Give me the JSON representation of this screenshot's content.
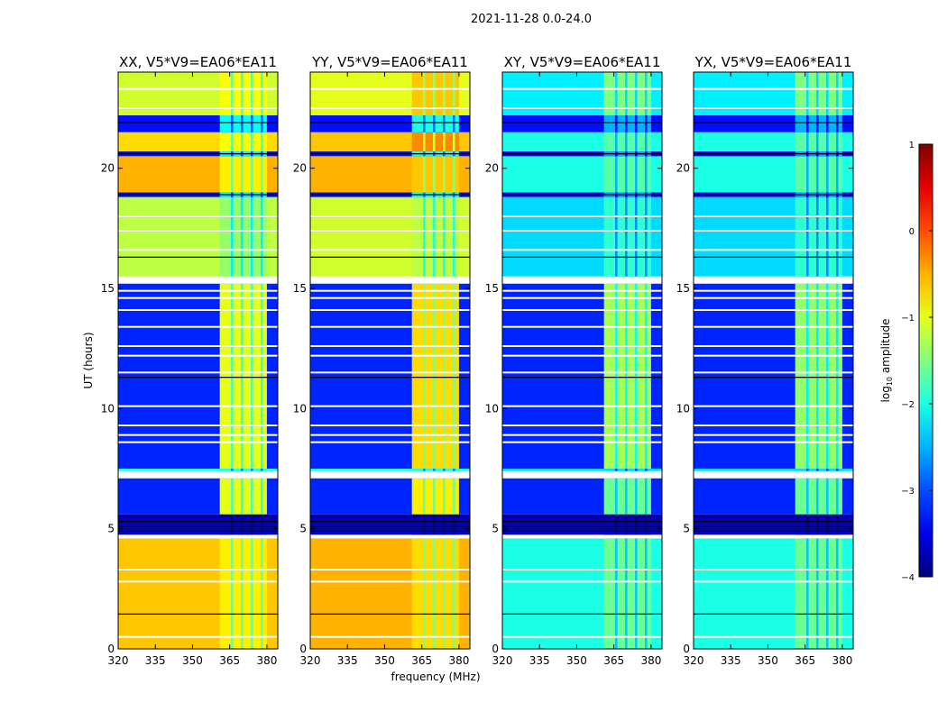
{
  "chart_data": {
    "type": "heatmap",
    "suptitle": "2021-11-28 0.0-24.0",
    "xlabel": "frequency (MHz)",
    "ylabel": "UT (hours)",
    "xlim": [
      320,
      384.4
    ],
    "ylim": [
      0,
      24
    ],
    "xticks": [
      320,
      335,
      350,
      365,
      380
    ],
    "yticks": [
      0,
      5,
      10,
      15,
      20
    ],
    "high_band_mhz": [
      361,
      380
    ],
    "stripe_freqs_mhz": [
      365.5,
      369.5,
      373.5,
      377.5
    ],
    "white_line_ut": [
      0.5,
      2.8,
      3.3,
      8.6,
      8.9,
      9.3,
      10.1,
      11.5,
      12.2,
      12.6,
      13.4,
      14.1,
      14.6,
      14.9,
      16.6,
      17.4,
      18.0,
      22.5,
      23.3
    ],
    "black_line_ut": [
      1.45,
      4.9,
      5.1,
      5.3,
      5.5,
      11.3,
      16.3,
      18.9,
      20.6,
      21.9
    ],
    "colorbar": {
      "label_main": "log",
      "label_sub": "10",
      "label_rest": " amplitude",
      "range": [
        -4,
        1
      ],
      "ticks": [
        -4,
        -3,
        -2,
        -1,
        0,
        1
      ],
      "colormap": "jet"
    },
    "panels": [
      {
        "title": "XX, V5*V9=EA06*EA11",
        "segments": [
          [
            0,
            4.6,
            -0.6,
            -0.8
          ],
          [
            4.6,
            4.75,
            null,
            null
          ],
          [
            4.75,
            5.6,
            -3.7,
            -3.7
          ],
          [
            5.6,
            7.1,
            -3.2,
            -1.0
          ],
          [
            7.1,
            7.4,
            null,
            null
          ],
          [
            7.4,
            7.5,
            -2.0,
            -2.0
          ],
          [
            7.5,
            15.2,
            -3.2,
            -1.0
          ],
          [
            15.2,
            15.5,
            null,
            null
          ],
          [
            15.5,
            18.8,
            -1.2,
            -1.4
          ],
          [
            18.8,
            19.0,
            -3.3,
            -2.2
          ],
          [
            19.0,
            20.5,
            -0.5,
            -0.8
          ],
          [
            20.5,
            20.7,
            -3.3,
            -2.2
          ],
          [
            20.7,
            21.5,
            -0.7,
            -0.9
          ],
          [
            21.5,
            22.2,
            -3.3,
            -2.1
          ],
          [
            22.2,
            24,
            -1.1,
            -0.9
          ]
        ]
      },
      {
        "title": "YY, V5*V9=EA06*EA11",
        "segments": [
          [
            0,
            4.6,
            -0.5,
            -0.7
          ],
          [
            4.6,
            4.75,
            null,
            null
          ],
          [
            4.75,
            5.6,
            -3.7,
            -3.7
          ],
          [
            5.6,
            7.1,
            -3.2,
            -0.8
          ],
          [
            7.1,
            7.4,
            null,
            null
          ],
          [
            7.4,
            7.5,
            -2.0,
            -2.0
          ],
          [
            7.5,
            15.2,
            -3.2,
            -0.7
          ],
          [
            15.2,
            15.5,
            null,
            null
          ],
          [
            15.5,
            18.8,
            -1.1,
            -1.2
          ],
          [
            18.8,
            19.0,
            -3.3,
            -2.0
          ],
          [
            19.0,
            20.5,
            -0.5,
            -0.6
          ],
          [
            20.5,
            20.7,
            -3.3,
            -2.0
          ],
          [
            20.7,
            21.5,
            -0.6,
            -0.3
          ],
          [
            21.5,
            22.2,
            -3.3,
            -2.0
          ],
          [
            22.2,
            24,
            -1.0,
            -0.6
          ]
        ]
      },
      {
        "title": "XY, V5*V9=EA06*EA11",
        "segments": [
          [
            0,
            4.6,
            -2.0,
            -1.6
          ],
          [
            4.6,
            4.75,
            null,
            null
          ],
          [
            4.75,
            5.6,
            -3.7,
            -3.7
          ],
          [
            5.6,
            7.1,
            -3.2,
            -1.6
          ],
          [
            7.1,
            7.4,
            null,
            null
          ],
          [
            7.4,
            7.5,
            -2.3,
            -2.3
          ],
          [
            7.5,
            15.2,
            -3.2,
            -1.3
          ],
          [
            15.2,
            15.5,
            null,
            null
          ],
          [
            15.5,
            18.8,
            -2.3,
            -1.9
          ],
          [
            18.8,
            19.0,
            -3.3,
            -2.6
          ],
          [
            19.0,
            20.5,
            -2.0,
            -1.7
          ],
          [
            20.5,
            20.7,
            -3.3,
            -2.6
          ],
          [
            20.7,
            21.5,
            -2.0,
            -1.7
          ],
          [
            21.5,
            22.2,
            -3.3,
            -2.5
          ],
          [
            22.2,
            24,
            -2.2,
            -1.5
          ]
        ]
      },
      {
        "title": "YX, V5*V9=EA06*EA11",
        "segments": [
          [
            0,
            4.6,
            -2.0,
            -1.6
          ],
          [
            4.6,
            4.75,
            null,
            null
          ],
          [
            4.75,
            5.6,
            -3.7,
            -3.7
          ],
          [
            5.6,
            7.1,
            -3.2,
            -1.6
          ],
          [
            7.1,
            7.4,
            null,
            null
          ],
          [
            7.4,
            7.5,
            -2.3,
            -2.3
          ],
          [
            7.5,
            15.2,
            -3.2,
            -1.4
          ],
          [
            15.2,
            15.5,
            null,
            null
          ],
          [
            15.5,
            18.8,
            -2.3,
            -1.9
          ],
          [
            18.8,
            19.0,
            -3.3,
            -2.6
          ],
          [
            19.0,
            20.5,
            -2.0,
            -1.7
          ],
          [
            20.5,
            20.7,
            -3.3,
            -2.6
          ],
          [
            20.7,
            21.5,
            -2.0,
            -1.7
          ],
          [
            21.5,
            22.2,
            -3.3,
            -2.5
          ],
          [
            22.2,
            24,
            -2.2,
            -1.5
          ]
        ]
      }
    ]
  }
}
